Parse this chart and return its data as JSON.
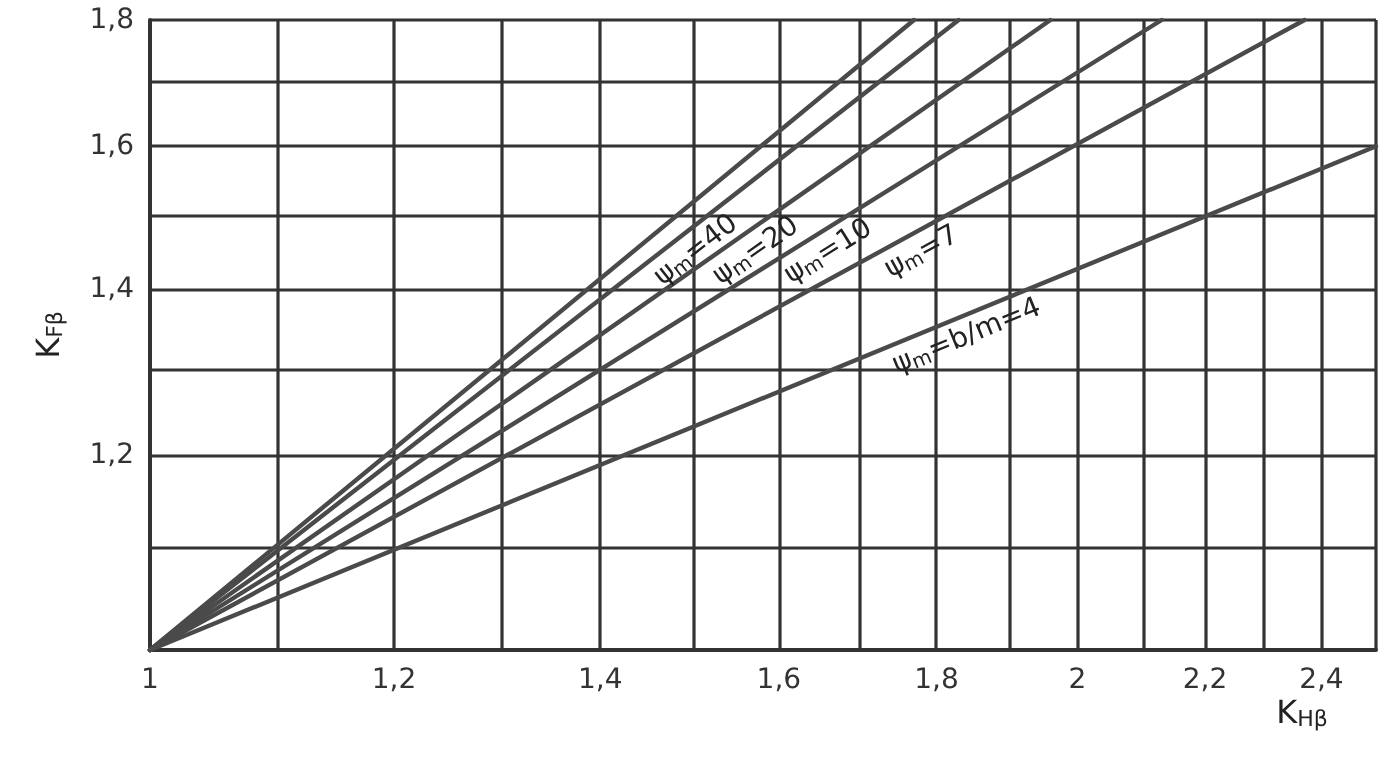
{
  "chart_data": {
    "type": "line",
    "xlabel": "K$_{Hβ}$",
    "ylabel": "K$_{Fβ}$",
    "log": "xy",
    "grid": true,
    "legend": false,
    "marker": "none",
    "line_style": "solid",
    "xlim": [
      1,
      2.5
    ],
    "ylim": [
      1,
      1.8
    ],
    "xticks": [
      1,
      {
        "value": 1.1,
        "label": null
      },
      {
        "value": 1.2,
        "label": "1,2"
      },
      {
        "value": 1.3,
        "label": null
      },
      {
        "value": 1.4,
        "label": "1,4"
      },
      {
        "value": 1.5,
        "label": null
      },
      {
        "value": 1.6,
        "label": "1,6"
      },
      {
        "value": 1.7,
        "label": null
      },
      {
        "value": 1.8,
        "label": "1,8"
      },
      {
        "value": 1.9,
        "label": null
      },
      2,
      {
        "value": 2.1,
        "label": null
      },
      {
        "value": 2.2,
        "label": "2,2"
      },
      {
        "value": 2.3,
        "label": null
      },
      {
        "value": 2.4,
        "label": "2,4"
      },
      {
        "value": 2.5,
        "label": null
      }
    ],
    "yticks": [
      {
        "value": 1,
        "label": null
      },
      {
        "value": 1.1,
        "label": null
      },
      {
        "value": 1.2,
        "label": "1,2"
      },
      {
        "value": 1.3,
        "label": null
      },
      {
        "value": 1.4,
        "label": "1,4"
      },
      {
        "value": 1.5,
        "label": null
      },
      {
        "value": 1.6,
        "label": "1,6"
      },
      {
        "value": 1.7,
        "label": null
      },
      {
        "value": 1.8,
        "label": "1,8"
      }
    ],
    "series": [
      {
        "color": "#4a4a4a",
        "x": [
          1,
          1.77
        ],
        "values": [
          1,
          1.8
        ]
      },
      {
        "name": "ψ$_{m}$=40",
        "color": "#4a4a4a",
        "x": [
          1,
          1.83
        ],
        "values": [
          1,
          1.8
        ]
      },
      {
        "name": "ψ$_{m}$=20",
        "color": "#4a4a4a",
        "x": [
          1,
          1.96
        ],
        "values": [
          1,
          1.8
        ]
      },
      {
        "name": "ψ$_{m}$=10",
        "color": "#4a4a4a",
        "x": [
          1,
          2.13
        ],
        "values": [
          1,
          1.8
        ]
      },
      {
        "name": "ψ$_{m}$=7",
        "color": "#4a4a4a",
        "x": [
          1,
          2.37
        ],
        "values": [
          1,
          1.8
        ]
      },
      {
        "name": "ψ$_{m}$=b/m=4",
        "color": "#4a4a4a",
        "x": [
          1,
          2.5
        ],
        "values": [
          1,
          1.6
        ]
      }
    ]
  }
}
